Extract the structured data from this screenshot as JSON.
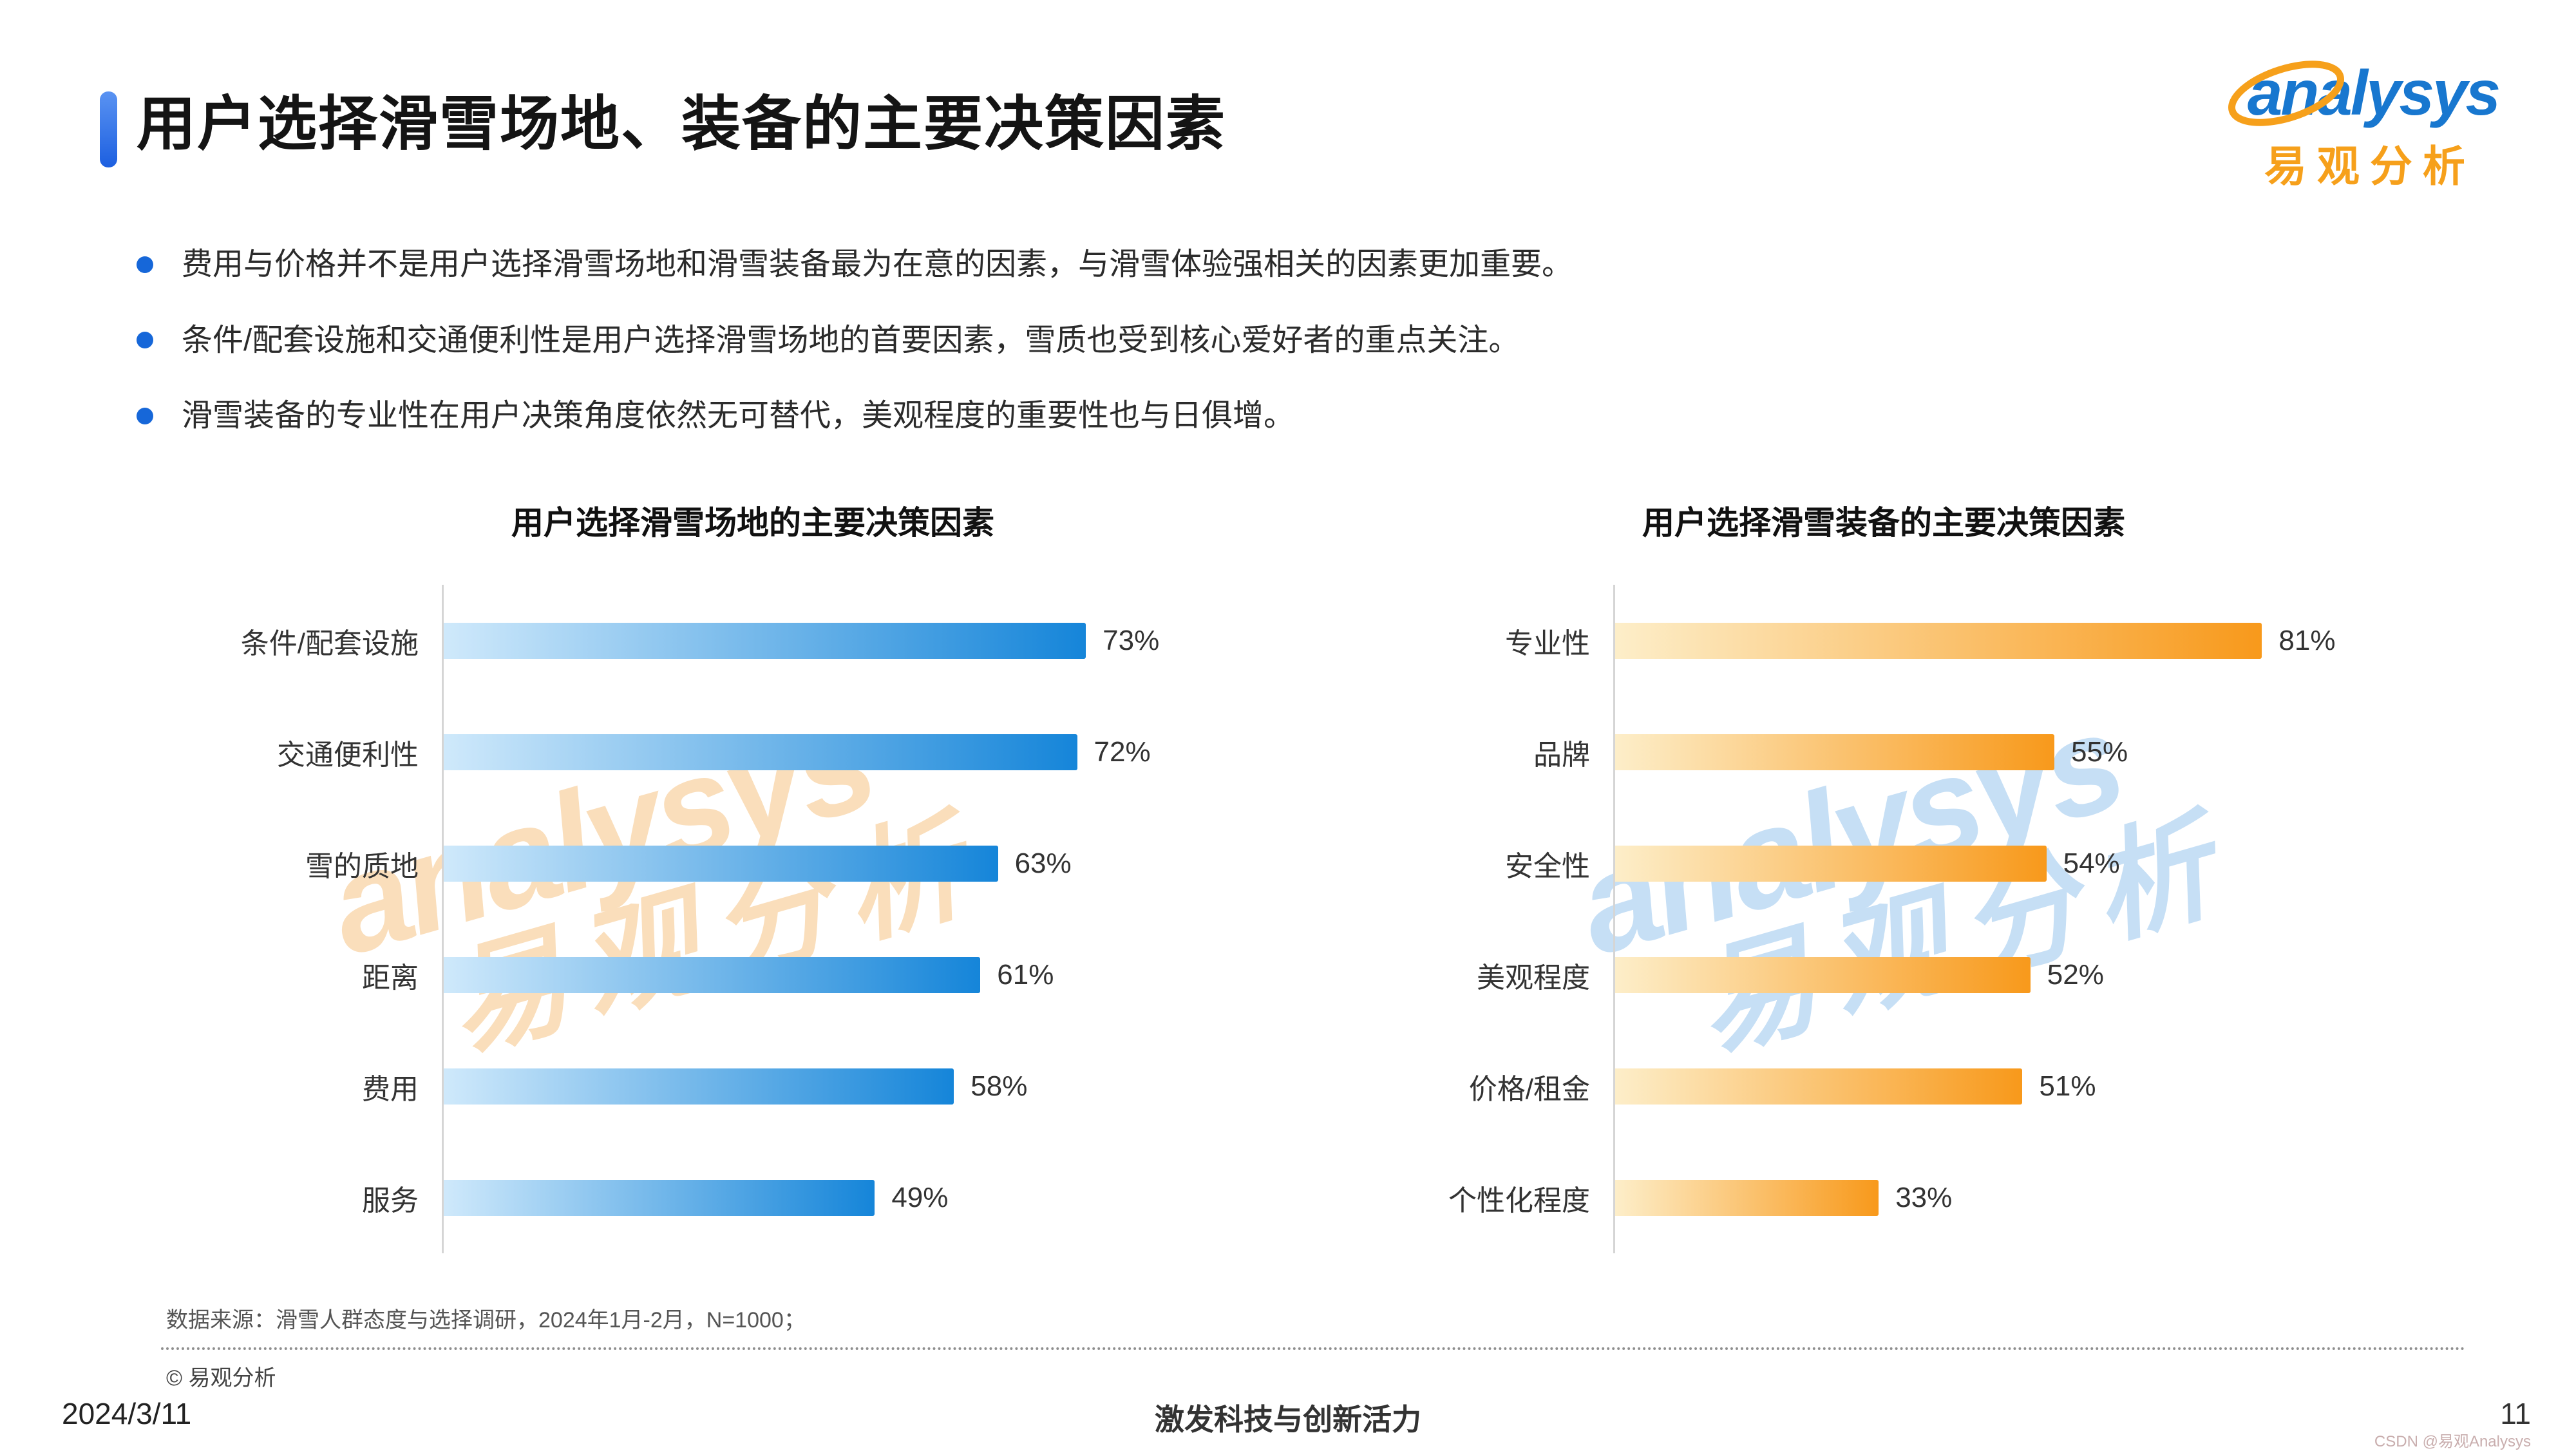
{
  "header": {
    "title": "用户选择滑雪场地、装备的主要决策因素",
    "logo": {
      "brand": "analysys",
      "brand_cn": "易观分析"
    }
  },
  "bullets": [
    "费用与价格并不是用户选择滑雪场地和滑雪装备最为在意的因素，与滑雪体验强相关的因素更加重要。",
    "条件/配套设施和交通便利性是用户选择滑雪场地的首要因素，雪质也受到核心爱好者的重点关注。",
    "滑雪装备的专业性在用户决策角度依然无可替代，美观程度的重要性也与日俱增。"
  ],
  "chart_data": [
    {
      "type": "bar",
      "orientation": "horizontal",
      "title": "用户选择滑雪场地的主要决策因素",
      "categories": [
        "条件/配套设施",
        "交通便利性",
        "雪的质地",
        "距离",
        "费用",
        "服务"
      ],
      "values": [
        73,
        72,
        63,
        61,
        58,
        49
      ],
      "value_suffix": "%",
      "xlim": [
        0,
        100
      ],
      "grid": false,
      "legend": "none",
      "bar_color_start": "#cfe9fb",
      "bar_color_end": "#1585d9"
    },
    {
      "type": "bar",
      "orientation": "horizontal",
      "title": "用户选择滑雪装备的主要决策因素",
      "categories": [
        "专业性",
        "品牌",
        "安全性",
        "美观程度",
        "价格/租金",
        "个性化程度"
      ],
      "values": [
        81,
        55,
        54,
        52,
        51,
        33
      ],
      "value_suffix": "%",
      "xlim": [
        0,
        100
      ],
      "grid": false,
      "legend": "none",
      "bar_color_start": "#fdeec9",
      "bar_color_end": "#f8991b"
    }
  ],
  "watermark": {
    "line1": "analysys",
    "line2": "易观分析"
  },
  "colors": {
    "accent_blue": "#1c5fe0",
    "bullet_dot": "#1667d9",
    "logo_blue": "#1877cf",
    "logo_orange": "#f6a01b"
  },
  "footer": {
    "source": "数据来源：滑雪人群态度与选择调研，2024年1月-2月，N=1000；",
    "copyright": "© 易观分析",
    "date": "2024/3/11",
    "slogan": "激发科技与创新活力",
    "page": "11",
    "tiny_watermark": "CSDN @易观Analysys"
  }
}
